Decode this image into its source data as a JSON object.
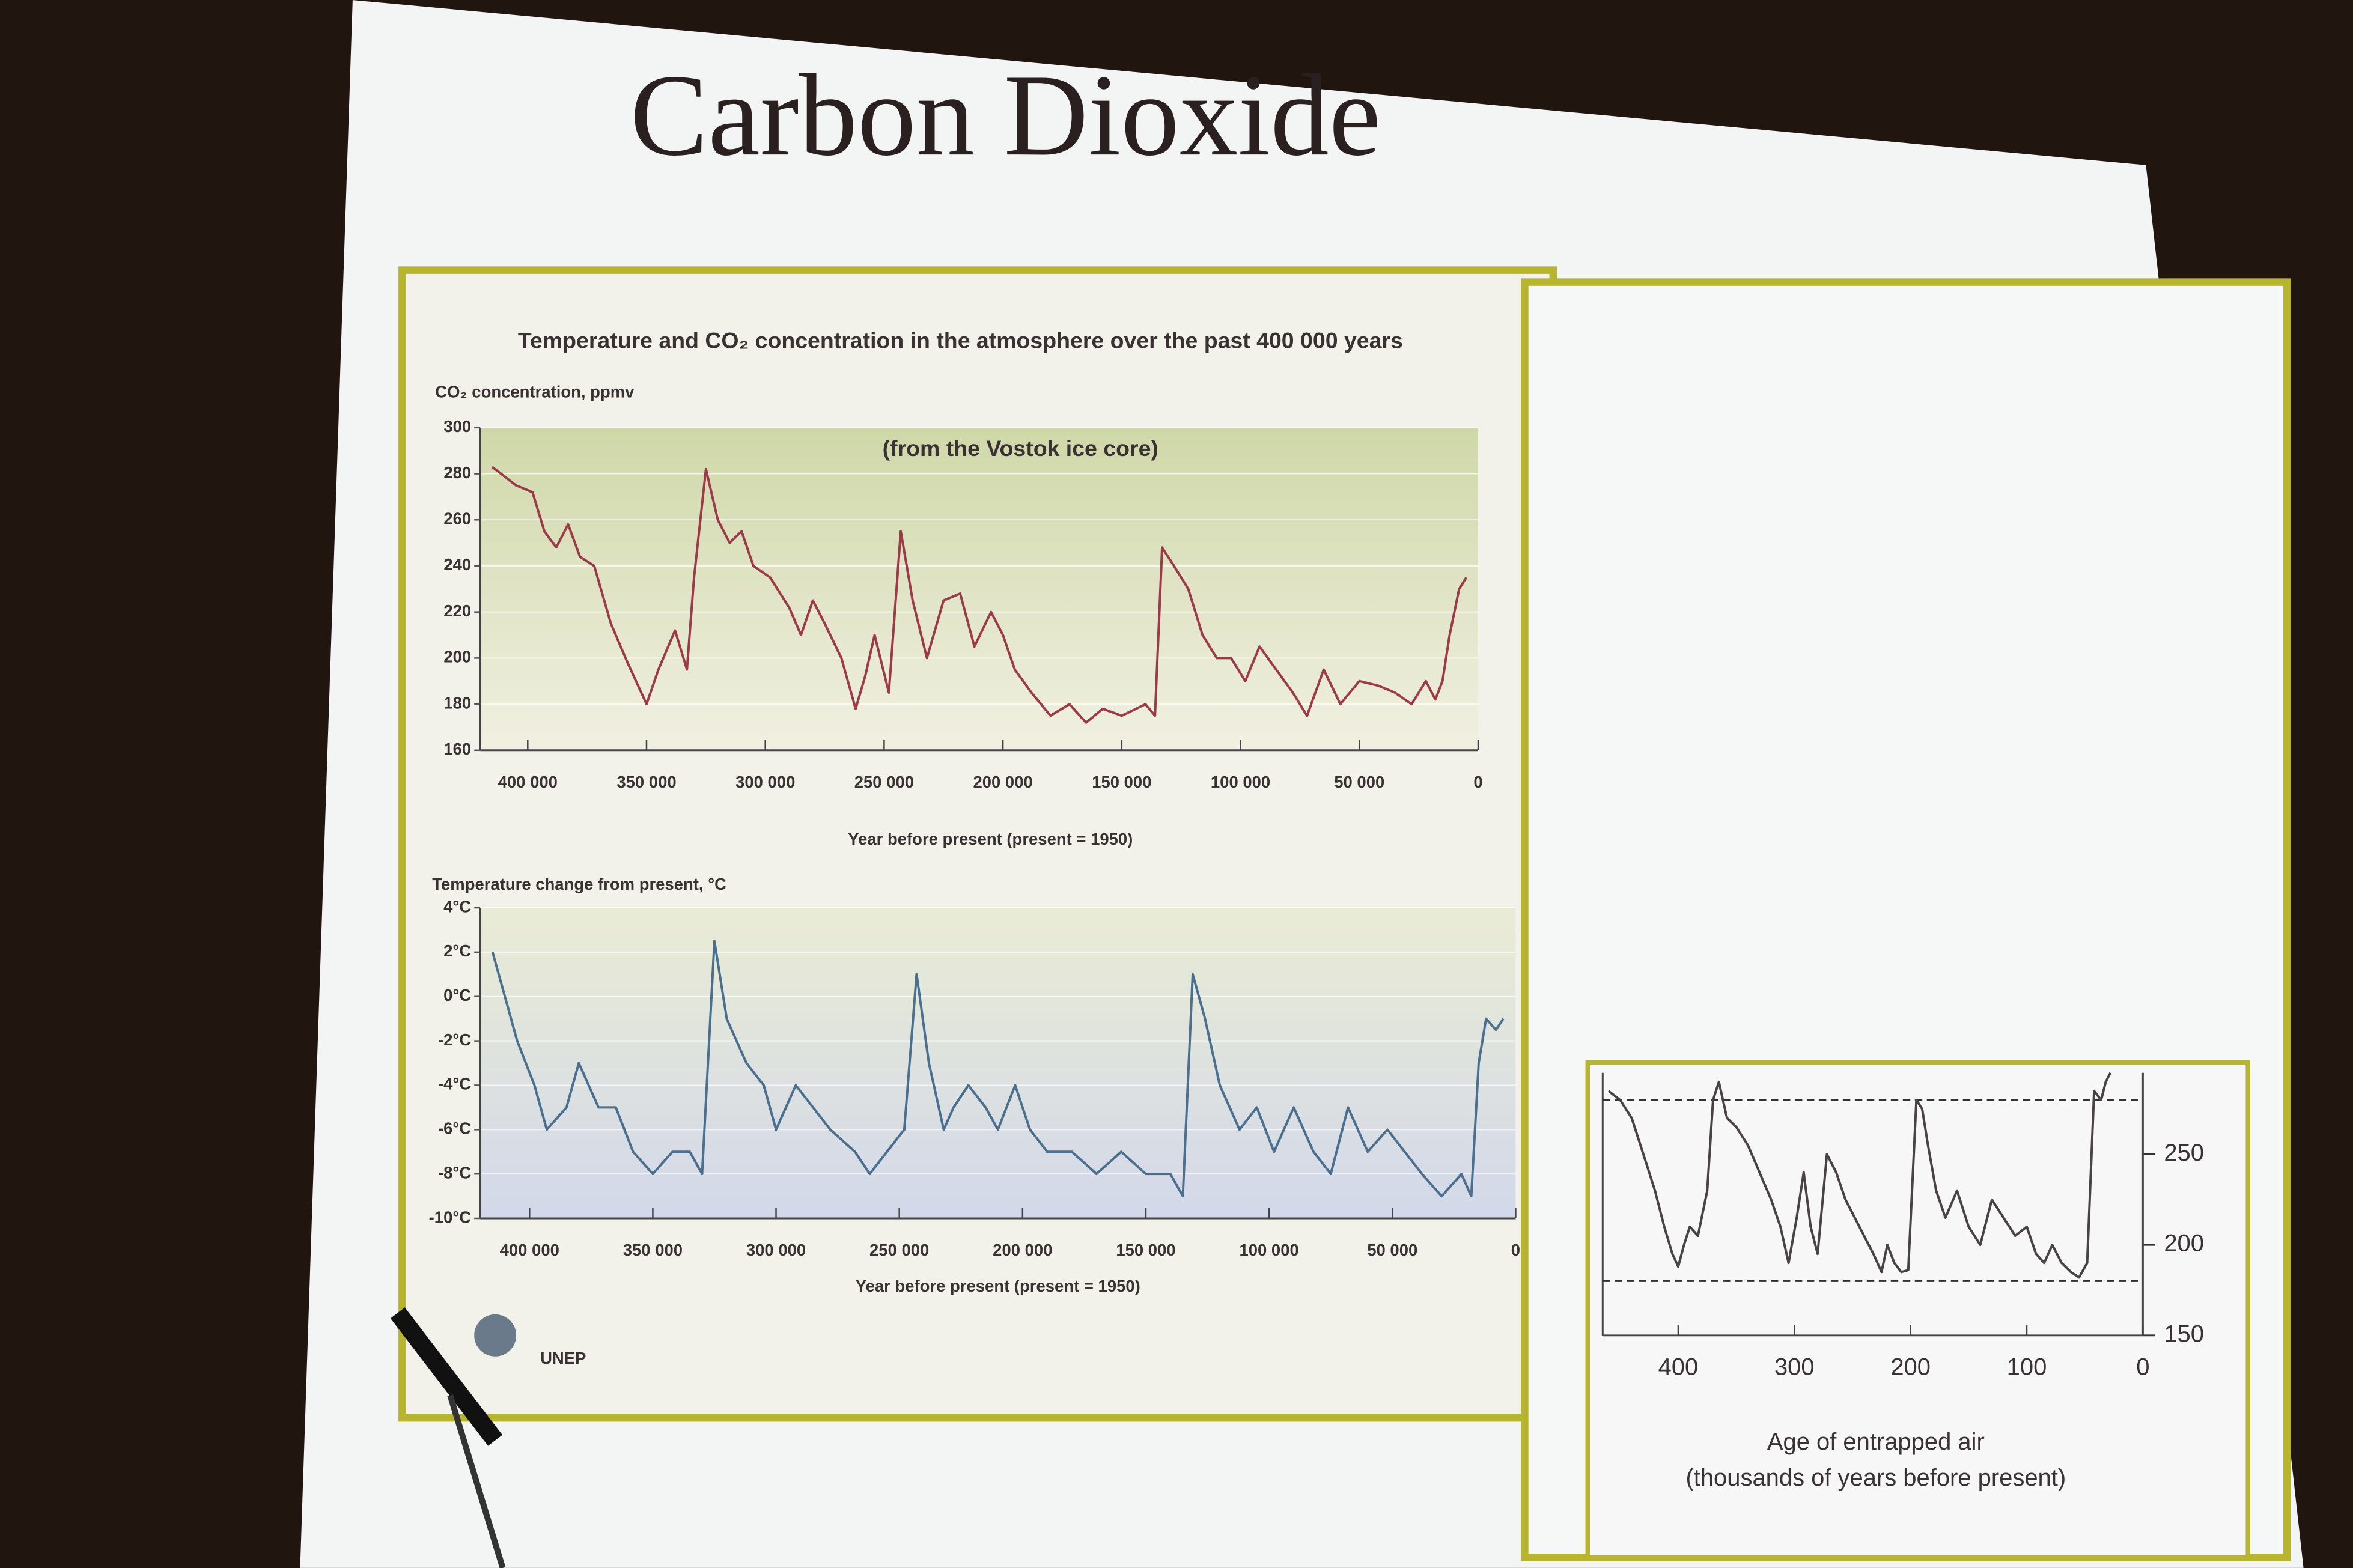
{
  "slide_title": "Carbon Dioxide",
  "logo_text": "UNEP",
  "chart_data": [
    {
      "type": "line",
      "title": "Temperature and CO₂ concentration in the atmosphere over the past 400 000 years",
      "subtitle": "(from the Vostok ice core)",
      "ylabel": "CO₂ concentration, ppmv",
      "xlabel": "Year before present (present = 1950)",
      "xlim": [
        420000,
        0
      ],
      "xticks": [
        {
          "value": 400000,
          "label": "400 000"
        },
        {
          "value": 350000,
          "label": "350 000"
        },
        {
          "value": 300000,
          "label": "300 000"
        },
        {
          "value": 250000,
          "label": "250 000"
        },
        {
          "value": 200000,
          "label": "200 000"
        },
        {
          "value": 150000,
          "label": "150 000"
        },
        {
          "value": 100000,
          "label": "100 000"
        },
        {
          "value": 50000,
          "label": "50 000"
        },
        0
      ],
      "ylim": [
        160,
        300
      ],
      "yticks": [
        160,
        180,
        200,
        220,
        240,
        260,
        280,
        300
      ],
      "grid": true,
      "x": [
        415000,
        405000,
        398000,
        393000,
        388000,
        383000,
        378000,
        372000,
        365000,
        358000,
        350000,
        345000,
        338000,
        333000,
        330000,
        325000,
        320000,
        315000,
        310000,
        305000,
        298000,
        290000,
        285000,
        280000,
        275000,
        268000,
        262000,
        258000,
        254000,
        248000,
        243000,
        238000,
        232000,
        225000,
        218000,
        212000,
        205000,
        200000,
        195000,
        188000,
        180000,
        172000,
        165000,
        158000,
        150000,
        140000,
        136000,
        133000,
        128000,
        122000,
        116000,
        110000,
        104000,
        98000,
        92000,
        85000,
        78000,
        72000,
        65000,
        58000,
        50000,
        42000,
        35000,
        28000,
        22000,
        18000,
        15000,
        12000,
        8000,
        5000
      ],
      "series": [
        {
          "color": "#9b3b4a",
          "values": [
            283,
            275,
            272,
            255,
            248,
            258,
            244,
            240,
            215,
            198,
            180,
            195,
            212,
            195,
            235,
            282,
            260,
            250,
            255,
            240,
            235,
            222,
            210,
            225,
            215,
            200,
            178,
            192,
            210,
            185,
            255,
            225,
            200,
            225,
            228,
            205,
            220,
            210,
            195,
            185,
            175,
            180,
            172,
            178,
            175,
            180,
            175,
            248,
            240,
            230,
            210,
            200,
            200,
            190,
            205,
            195,
            185,
            175,
            195,
            180,
            190,
            188,
            185,
            180,
            190,
            182,
            190,
            210,
            230,
            235
          ]
        }
      ]
    },
    {
      "type": "line",
      "ylabel": "Temperature change from present, °C",
      "xlabel": "Year before present (present = 1950)",
      "xlim": [
        420000,
        0
      ],
      "xticks": [
        {
          "value": 400000,
          "label": "400 000"
        },
        {
          "value": 350000,
          "label": "350 000"
        },
        {
          "value": 300000,
          "label": "300 000"
        },
        {
          "value": 250000,
          "label": "250 000"
        },
        {
          "value": 200000,
          "label": "200 000"
        },
        {
          "value": 150000,
          "label": "150 000"
        },
        {
          "value": 100000,
          "label": "100 000"
        },
        {
          "value": 50000,
          "label": "50 000"
        },
        0
      ],
      "ylim": [
        -10,
        4
      ],
      "yticks": [
        {
          "value": -10,
          "label": "-10°C"
        },
        {
          "value": -8,
          "label": "-8°C"
        },
        {
          "value": -6,
          "label": "-6°C"
        },
        {
          "value": -4,
          "label": "-4°C"
        },
        {
          "value": -2,
          "label": "-2°C"
        },
        {
          "value": 0,
          "label": "0°C"
        },
        {
          "value": 2,
          "label": "2°C"
        },
        {
          "value": 4,
          "label": "4°C"
        }
      ],
      "grid": true,
      "x": [
        415000,
        405000,
        398000,
        393000,
        385000,
        380000,
        372000,
        365000,
        358000,
        350000,
        342000,
        335000,
        330000,
        325000,
        320000,
        312000,
        305000,
        300000,
        292000,
        285000,
        278000,
        268000,
        262000,
        255000,
        248000,
        243000,
        238000,
        232000,
        228000,
        222000,
        215000,
        210000,
        203000,
        197000,
        190000,
        180000,
        170000,
        160000,
        150000,
        140000,
        135000,
        131000,
        126000,
        120000,
        112000,
        105000,
        98000,
        90000,
        82000,
        75000,
        68000,
        60000,
        52000,
        45000,
        38000,
        30000,
        22000,
        18000,
        15000,
        12000,
        8000,
        5000
      ],
      "series": [
        {
          "color": "#4a6f8f",
          "values": [
            2,
            -2,
            -4,
            -6,
            -5,
            -3,
            -5,
            -5,
            -7,
            -8,
            -7,
            -7,
            -8,
            2.5,
            -1,
            -3,
            -4,
            -6,
            -4,
            -5,
            -6,
            -7,
            -8,
            -7,
            -6,
            1,
            -3,
            -6,
            -5,
            -4,
            -5,
            -6,
            -4,
            -6,
            -7,
            -7,
            -8,
            -7,
            -8,
            -8,
            -9,
            1,
            -1,
            -4,
            -6,
            -5,
            -7,
            -5,
            -7,
            -8,
            -5,
            -7,
            -6,
            -7,
            -8,
            -9,
            -8,
            -9,
            -3,
            -1,
            -1.5,
            -1
          ]
        }
      ]
    },
    {
      "type": "line",
      "xlabel": [
        "Age of entrapped air",
        "(thousands of years before present)"
      ],
      "xlim": [
        465,
        0
      ],
      "xticks": [
        400,
        300,
        200,
        100,
        0
      ],
      "ylim": [
        150,
        295
      ],
      "yticks": [
        150,
        200,
        250
      ],
      "y_axis_side": "right",
      "grid": false,
      "reference_lines": [
        180,
        280
      ],
      "x": [
        460,
        450,
        440,
        430,
        420,
        412,
        405,
        400,
        395,
        390,
        383,
        375,
        370,
        365,
        358,
        350,
        340,
        330,
        320,
        312,
        305,
        298,
        292,
        286,
        280,
        272,
        264,
        256,
        248,
        240,
        232,
        225,
        220,
        214,
        208,
        202,
        195,
        190,
        185,
        178,
        170,
        160,
        150,
        140,
        130,
        120,
        110,
        100,
        92,
        85,
        78,
        70,
        62,
        55,
        48,
        42,
        36,
        32,
        28
      ],
      "series": [
        {
          "color": "#4a4346",
          "values": [
            285,
            280,
            270,
            250,
            230,
            210,
            195,
            188,
            200,
            210,
            205,
            230,
            280,
            290,
            270,
            265,
            255,
            240,
            225,
            210,
            190,
            215,
            240,
            210,
            195,
            250,
            240,
            225,
            215,
            205,
            195,
            185,
            200,
            190,
            185,
            186,
            280,
            275,
            255,
            230,
            215,
            230,
            210,
            200,
            225,
            215,
            205,
            210,
            195,
            190,
            200,
            190,
            185,
            182,
            190,
            285,
            280,
            290,
            295
          ]
        }
      ]
    }
  ]
}
